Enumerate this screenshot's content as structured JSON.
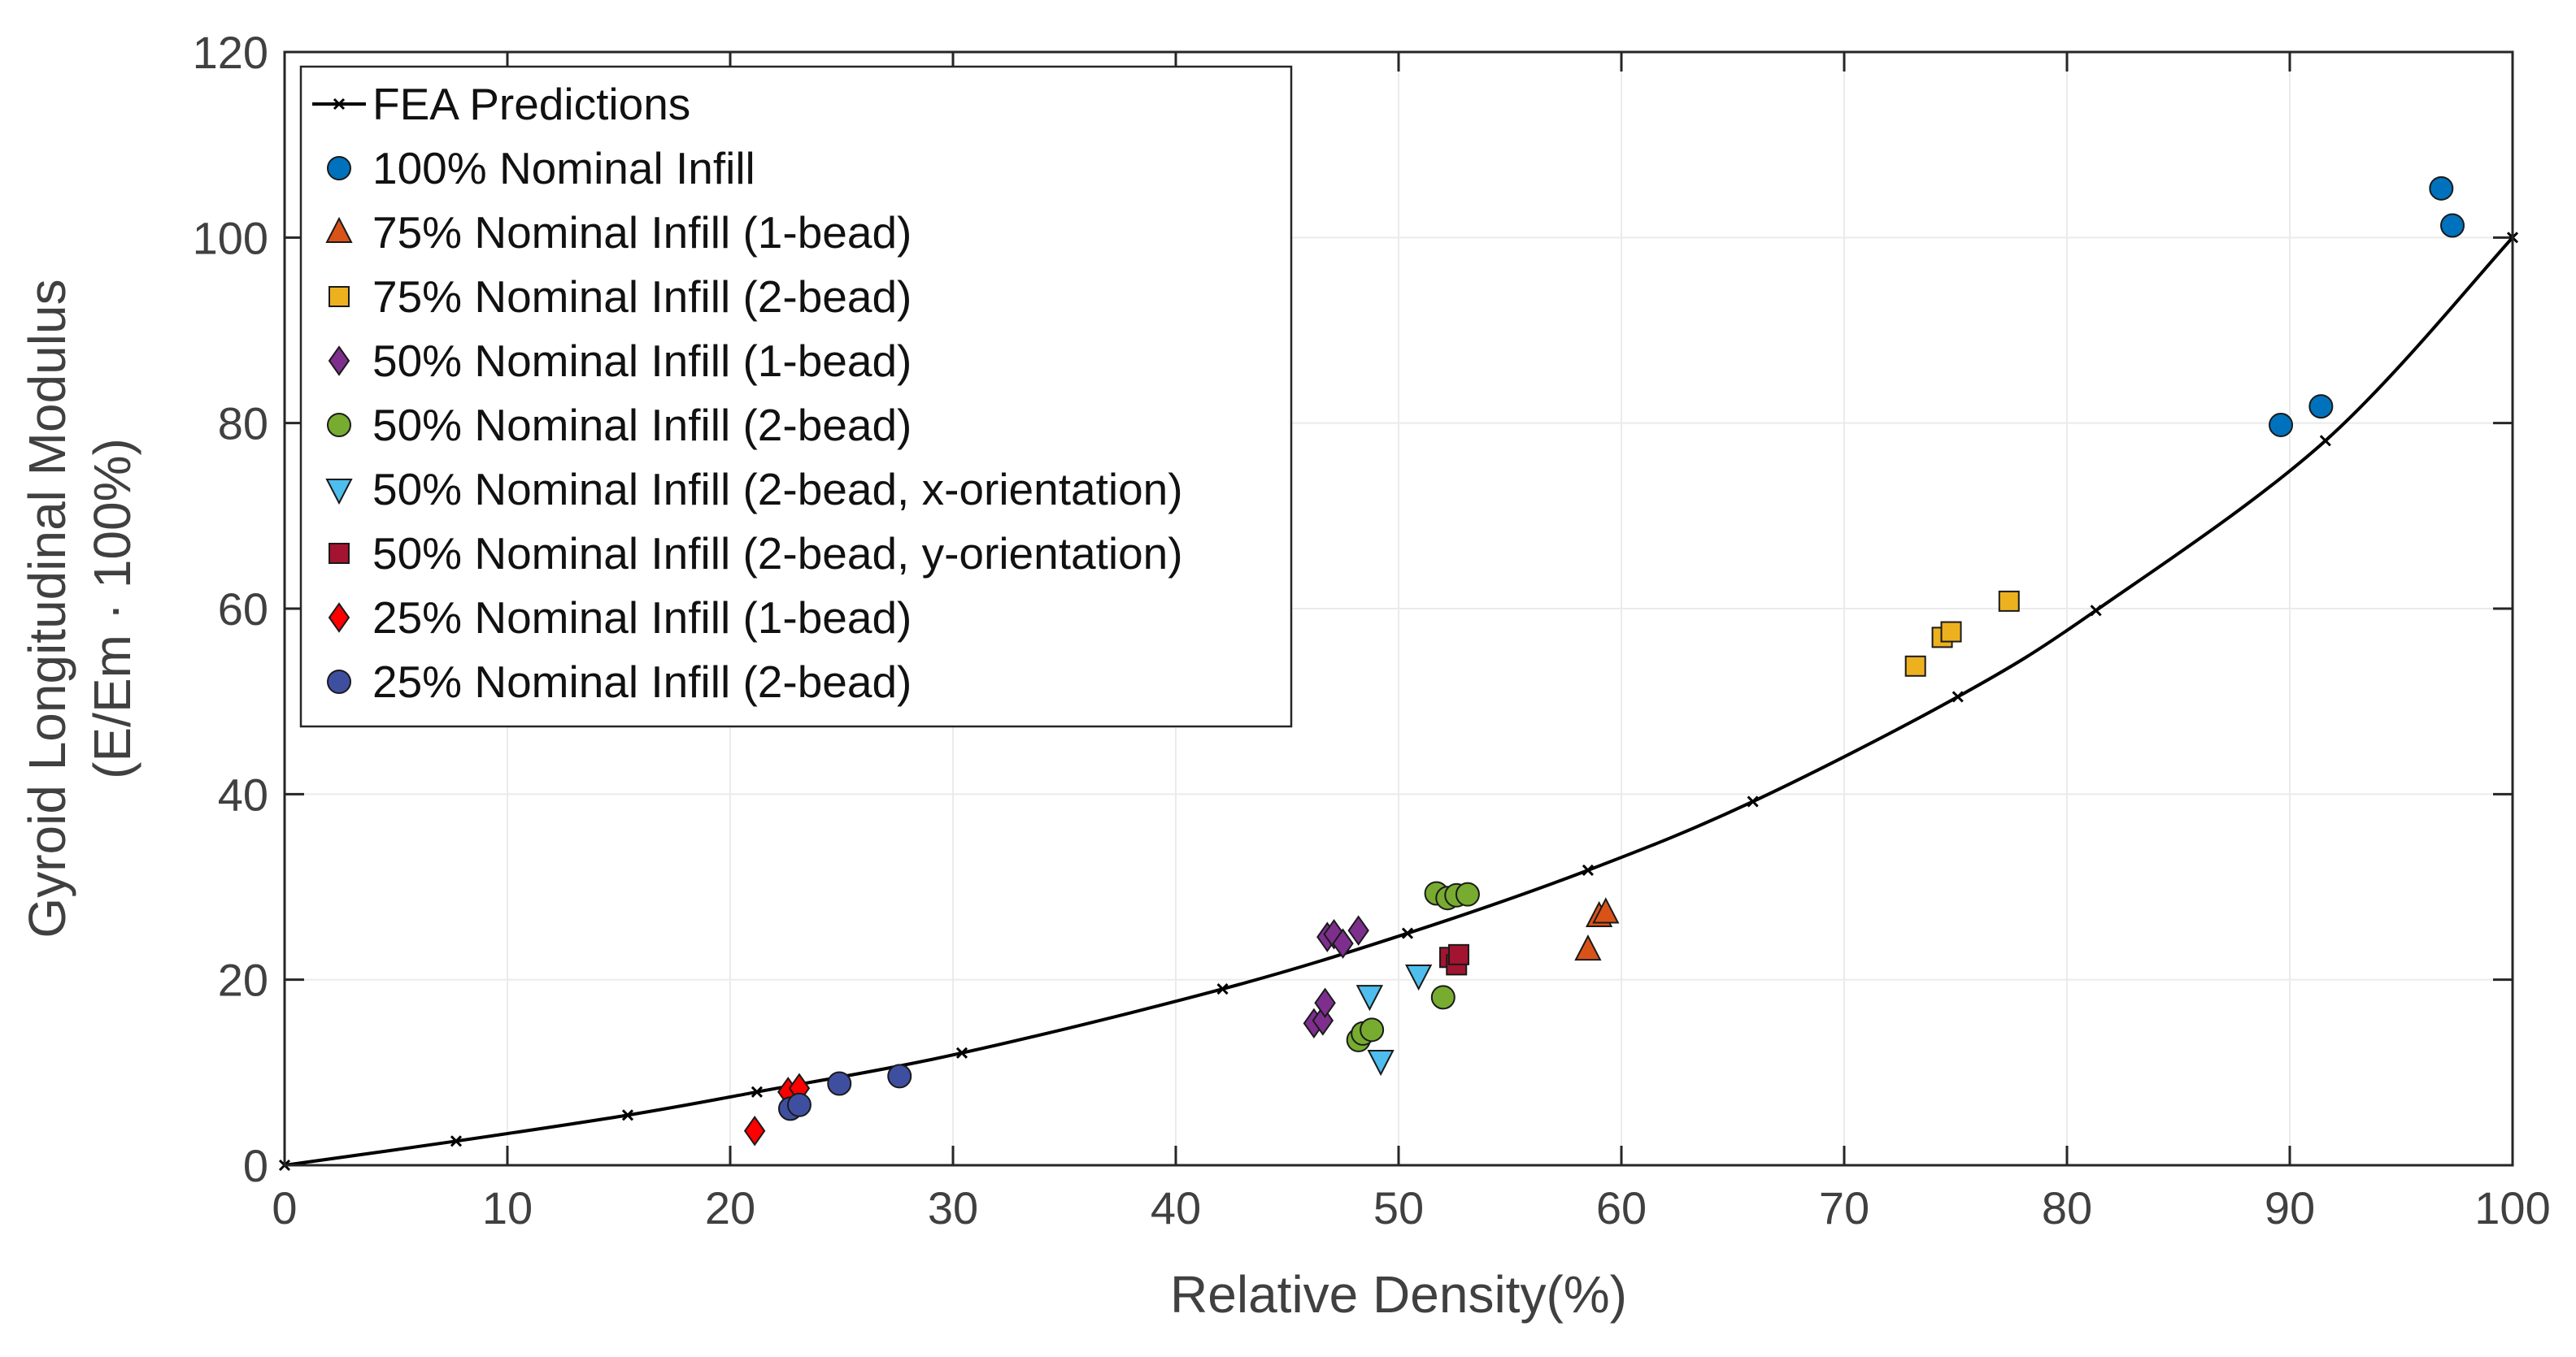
{
  "chart_data": {
    "type": "scatter",
    "title": "",
    "xlabel": "Relative Density(%)",
    "ylabel_lines": [
      "Gyroid Longitudinal Modulus",
      "(E/Em · 100%)"
    ],
    "xlim": [
      0,
      100
    ],
    "ylim": [
      0,
      120
    ],
    "x_ticks": [
      0,
      10,
      20,
      30,
      40,
      50,
      60,
      70,
      80,
      90,
      100
    ],
    "y_ticks": [
      0,
      20,
      40,
      60,
      80,
      100,
      120
    ],
    "grid": true,
    "legend_position": "top-left",
    "fit_line": {
      "name": "FEA Predictions",
      "color": "#000000",
      "x": [
        0,
        7.7,
        15.4,
        21.2,
        30.4,
        42.1,
        50.4,
        58.5,
        65.9,
        75.1,
        81.3,
        91.6,
        100
      ],
      "y": [
        0,
        2.6,
        5.4,
        7.9,
        12.1,
        19.0,
        25.0,
        31.8,
        39.2,
        50.5,
        59.8,
        78.1,
        100
      ]
    },
    "series": [
      {
        "name": "100% Nominal Infill",
        "marker": "circle",
        "color": "#0072BD",
        "points": [
          [
            96.8,
            105.3
          ],
          [
            97.3,
            101.3
          ],
          [
            89.6,
            79.8
          ],
          [
            91.4,
            81.8
          ]
        ]
      },
      {
        "name": "75% Nominal Infill (1-bead)",
        "marker": "triangle-up",
        "color": "#D95319",
        "points": [
          [
            58.5,
            23.2
          ],
          [
            59.0,
            26.8
          ],
          [
            59.3,
            27.2
          ]
        ]
      },
      {
        "name": "75% Nominal Infill (2-bead)",
        "marker": "square",
        "color": "#EDB120",
        "points": [
          [
            73.2,
            53.8
          ],
          [
            74.4,
            56.9
          ],
          [
            74.8,
            57.5
          ],
          [
            77.4,
            60.8
          ]
        ]
      },
      {
        "name": "50% Nominal Infill (1-bead)",
        "marker": "diamond",
        "color": "#7E2F8E",
        "points": [
          [
            46.2,
            15.3
          ],
          [
            46.6,
            15.6
          ],
          [
            46.7,
            17.5
          ],
          [
            46.8,
            24.6
          ],
          [
            47.1,
            24.9
          ],
          [
            47.5,
            23.9
          ],
          [
            48.2,
            25.3
          ]
        ]
      },
      {
        "name": "50% Nominal Infill (2-bead)",
        "marker": "circle",
        "color": "#77AC30",
        "points": [
          [
            48.2,
            13.5
          ],
          [
            48.4,
            14.2
          ],
          [
            48.8,
            14.6
          ],
          [
            52.0,
            18.1
          ],
          [
            51.7,
            29.3
          ],
          [
            52.2,
            28.8
          ],
          [
            52.6,
            29.1
          ],
          [
            53.1,
            29.2
          ]
        ]
      },
      {
        "name": "50% Nominal Infill (2-bead, x-orientation)",
        "marker": "triangle-down",
        "color": "#4DBEEE",
        "points": [
          [
            48.7,
            18.3
          ],
          [
            49.2,
            11.3
          ],
          [
            50.9,
            20.5
          ]
        ]
      },
      {
        "name": "50% Nominal Infill (2-bead, y-orientation)",
        "marker": "square",
        "color": "#A2142F",
        "points": [
          [
            52.3,
            22.4
          ],
          [
            52.6,
            21.6
          ],
          [
            52.7,
            22.7
          ]
        ]
      },
      {
        "name": "25% Nominal Infill (1-bead)",
        "marker": "diamond",
        "color": "#FF0000",
        "points": [
          [
            21.1,
            3.7
          ],
          [
            22.6,
            7.9
          ],
          [
            23.1,
            8.3
          ]
        ]
      },
      {
        "name": "25% Nominal Infill (2-bead)",
        "marker": "circle",
        "color": "#3F4FA0",
        "points": [
          [
            22.7,
            6.1
          ],
          [
            23.1,
            6.5
          ],
          [
            24.9,
            8.8
          ],
          [
            27.6,
            9.6
          ]
        ]
      }
    ]
  }
}
